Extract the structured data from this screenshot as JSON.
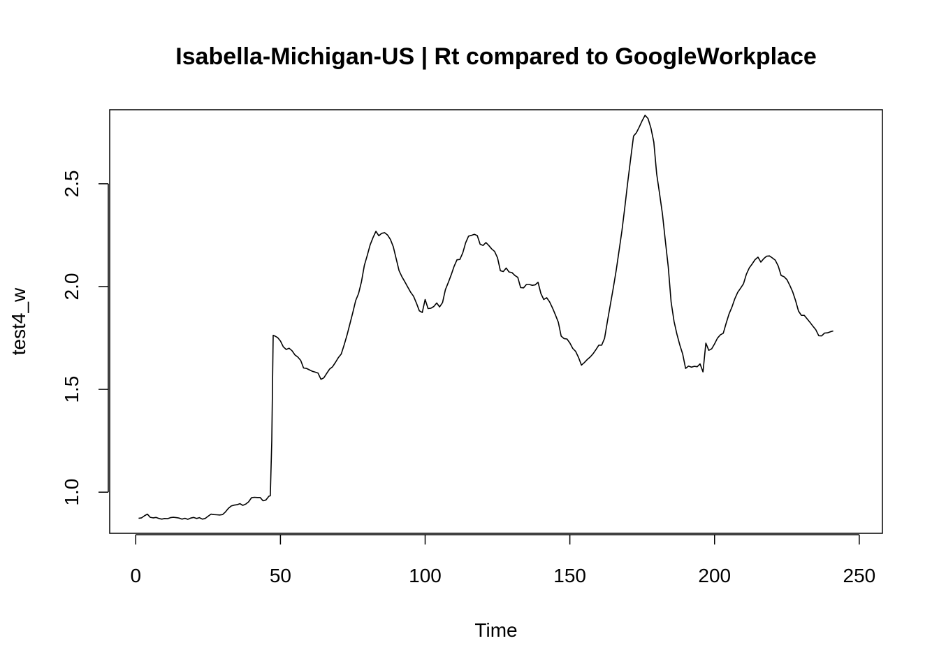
{
  "chart_data": {
    "type": "line",
    "title": "Isabella-Michigan-US | Rt compared to GoogleWorkplace",
    "xlabel": "Time",
    "ylabel": "test4_w",
    "xlim": [
      -9,
      258
    ],
    "ylim": [
      0.8,
      2.86
    ],
    "x_ticks": [
      0,
      50,
      100,
      150,
      200,
      250
    ],
    "y_ticks": [
      1.0,
      1.5,
      2.0,
      2.5
    ],
    "x_tick_labels": [
      "0",
      "50",
      "100",
      "150",
      "200",
      "250"
    ],
    "y_tick_labels": [
      "1.0",
      "1.5",
      "2.0",
      "2.5"
    ],
    "grid": false,
    "legend": "none",
    "line_color": "#000000",
    "series": [
      {
        "points": [
          [
            1,
            0.873
          ],
          [
            2,
            0.875
          ],
          [
            3,
            0.885
          ],
          [
            4,
            0.893
          ],
          [
            5,
            0.878
          ],
          [
            6,
            0.875
          ],
          [
            7,
            0.877
          ],
          [
            8,
            0.872
          ],
          [
            9,
            0.869
          ],
          [
            10,
            0.872
          ],
          [
            11,
            0.871
          ],
          [
            12,
            0.876
          ],
          [
            13,
            0.878
          ],
          [
            14,
            0.876
          ],
          [
            15,
            0.874
          ],
          [
            16,
            0.869
          ],
          [
            17,
            0.873
          ],
          [
            18,
            0.868
          ],
          [
            19,
            0.874
          ],
          [
            20,
            0.877
          ],
          [
            21,
            0.872
          ],
          [
            22,
            0.876
          ],
          [
            23,
            0.869
          ],
          [
            24,
            0.872
          ],
          [
            25,
            0.883
          ],
          [
            26,
            0.893
          ],
          [
            27,
            0.891
          ],
          [
            28,
            0.89
          ],
          [
            29,
            0.889
          ],
          [
            30,
            0.891
          ],
          [
            31,
            0.904
          ],
          [
            32,
            0.921
          ],
          [
            33,
            0.933
          ],
          [
            34,
            0.937
          ],
          [
            35,
            0.939
          ],
          [
            36,
            0.944
          ],
          [
            37,
            0.936
          ],
          [
            38,
            0.942
          ],
          [
            39,
            0.953
          ],
          [
            40,
            0.973
          ],
          [
            41,
            0.975
          ],
          [
            42,
            0.974
          ],
          [
            43,
            0.974
          ],
          [
            44,
            0.958
          ],
          [
            45,
            0.962
          ],
          [
            46,
            0.98
          ],
          [
            46.5,
            0.983
          ],
          [
            47,
            1.25
          ],
          [
            47.5,
            1.763
          ],
          [
            48,
            1.76
          ],
          [
            49,
            1.752
          ],
          [
            50,
            1.735
          ],
          [
            51,
            1.707
          ],
          [
            52,
            1.694
          ],
          [
            53,
            1.7
          ],
          [
            54,
            1.688
          ],
          [
            55,
            1.668
          ],
          [
            56,
            1.657
          ],
          [
            57,
            1.641
          ],
          [
            58,
            1.604
          ],
          [
            59,
            1.602
          ],
          [
            60,
            1.595
          ],
          [
            61,
            1.588
          ],
          [
            62,
            1.584
          ],
          [
            63,
            1.579
          ],
          [
            64,
            1.549
          ],
          [
            65,
            1.556
          ],
          [
            66,
            1.578
          ],
          [
            67,
            1.599
          ],
          [
            68,
            1.61
          ],
          [
            69,
            1.631
          ],
          [
            70,
            1.654
          ],
          [
            71,
            1.672
          ],
          [
            72,
            1.715
          ],
          [
            73,
            1.764
          ],
          [
            74,
            1.818
          ],
          [
            75,
            1.874
          ],
          [
            76,
            1.932
          ],
          [
            77,
            1.966
          ],
          [
            78,
            2.024
          ],
          [
            79,
            2.103
          ],
          [
            80,
            2.152
          ],
          [
            81,
            2.203
          ],
          [
            82,
            2.239
          ],
          [
            83,
            2.269
          ],
          [
            84,
            2.247
          ],
          [
            85,
            2.259
          ],
          [
            86,
            2.262
          ],
          [
            87,
            2.251
          ],
          [
            88,
            2.229
          ],
          [
            89,
            2.194
          ],
          [
            90,
            2.135
          ],
          [
            91,
            2.077
          ],
          [
            92,
            2.047
          ],
          [
            93,
            2.023
          ],
          [
            94,
            1.997
          ],
          [
            95,
            1.972
          ],
          [
            96,
            1.953
          ],
          [
            97,
            1.919
          ],
          [
            98,
            1.882
          ],
          [
            99,
            1.874
          ],
          [
            100,
            1.937
          ],
          [
            101,
            1.893
          ],
          [
            102,
            1.895
          ],
          [
            103,
            1.903
          ],
          [
            104,
            1.92
          ],
          [
            105,
            1.901
          ],
          [
            106,
            1.922
          ],
          [
            107,
            1.985
          ],
          [
            108,
            2.02
          ],
          [
            109,
            2.057
          ],
          [
            110,
            2.098
          ],
          [
            111,
            2.13
          ],
          [
            112,
            2.132
          ],
          [
            113,
            2.164
          ],
          [
            114,
            2.213
          ],
          [
            115,
            2.245
          ],
          [
            116,
            2.249
          ],
          [
            117,
            2.254
          ],
          [
            118,
            2.248
          ],
          [
            119,
            2.206
          ],
          [
            120,
            2.2
          ],
          [
            121,
            2.214
          ],
          [
            122,
            2.2
          ],
          [
            123,
            2.183
          ],
          [
            124,
            2.171
          ],
          [
            125,
            2.14
          ],
          [
            126,
            2.077
          ],
          [
            127,
            2.073
          ],
          [
            128,
            2.09
          ],
          [
            129,
            2.071
          ],
          [
            130,
            2.068
          ],
          [
            131,
            2.054
          ],
          [
            132,
            2.045
          ],
          [
            133,
            1.995
          ],
          [
            134,
            1.994
          ],
          [
            135,
            2.01
          ],
          [
            136,
            2.01
          ],
          [
            137,
            2.006
          ],
          [
            138,
            2.008
          ],
          [
            139,
            2.021
          ],
          [
            140,
            1.966
          ],
          [
            141,
            1.937
          ],
          [
            142,
            1.946
          ],
          [
            143,
            1.926
          ],
          [
            144,
            1.896
          ],
          [
            145,
            1.863
          ],
          [
            146,
            1.827
          ],
          [
            147,
            1.759
          ],
          [
            148,
            1.747
          ],
          [
            149,
            1.745
          ],
          [
            150,
            1.726
          ],
          [
            151,
            1.699
          ],
          [
            152,
            1.685
          ],
          [
            153,
            1.655
          ],
          [
            154,
            1.618
          ],
          [
            155,
            1.63
          ],
          [
            156,
            1.645
          ],
          [
            157,
            1.657
          ],
          [
            158,
            1.673
          ],
          [
            159,
            1.693
          ],
          [
            160,
            1.715
          ],
          [
            161,
            1.715
          ],
          [
            162,
            1.748
          ],
          [
            163,
            1.833
          ],
          [
            164,
            1.912
          ],
          [
            165,
            1.993
          ],
          [
            166,
            2.077
          ],
          [
            167,
            2.173
          ],
          [
            168,
            2.272
          ],
          [
            169,
            2.385
          ],
          [
            170,
            2.508
          ],
          [
            171,
            2.62
          ],
          [
            172,
            2.732
          ],
          [
            173,
            2.748
          ],
          [
            174,
            2.776
          ],
          [
            175,
            2.807
          ],
          [
            176,
            2.833
          ],
          [
            177,
            2.817
          ],
          [
            178,
            2.772
          ],
          [
            179,
            2.703
          ],
          [
            180,
            2.548
          ],
          [
            181,
            2.453
          ],
          [
            182,
            2.352
          ],
          [
            183,
            2.223
          ],
          [
            184,
            2.095
          ],
          [
            185,
            1.924
          ],
          [
            186,
            1.83
          ],
          [
            187,
            1.768
          ],
          [
            188,
            1.716
          ],
          [
            189,
            1.671
          ],
          [
            190,
            1.602
          ],
          [
            191,
            1.613
          ],
          [
            192,
            1.608
          ],
          [
            193,
            1.612
          ],
          [
            194,
            1.61
          ],
          [
            195,
            1.624
          ],
          [
            196,
            1.585
          ],
          [
            197,
            1.725
          ],
          [
            198,
            1.69
          ],
          [
            199,
            1.697
          ],
          [
            200,
            1.721
          ],
          [
            201,
            1.749
          ],
          [
            202,
            1.765
          ],
          [
            203,
            1.773
          ],
          [
            204,
            1.821
          ],
          [
            205,
            1.867
          ],
          [
            206,
            1.9
          ],
          [
            207,
            1.94
          ],
          [
            208,
            1.972
          ],
          [
            209,
            1.992
          ],
          [
            210,
            2.014
          ],
          [
            211,
            2.06
          ],
          [
            212,
            2.091
          ],
          [
            213,
            2.11
          ],
          [
            214,
            2.131
          ],
          [
            215,
            2.143
          ],
          [
            216,
            2.119
          ],
          [
            217,
            2.136
          ],
          [
            218,
            2.148
          ],
          [
            219,
            2.149
          ],
          [
            220,
            2.139
          ],
          [
            221,
            2.128
          ],
          [
            222,
            2.1
          ],
          [
            223,
            2.054
          ],
          [
            224,
            2.048
          ],
          [
            225,
            2.034
          ],
          [
            226,
            2.006
          ],
          [
            227,
            1.974
          ],
          [
            228,
            1.932
          ],
          [
            229,
            1.881
          ],
          [
            230,
            1.86
          ],
          [
            231,
            1.86
          ],
          [
            232,
            1.843
          ],
          [
            233,
            1.826
          ],
          [
            234,
            1.807
          ],
          [
            235,
            1.79
          ],
          [
            236,
            1.761
          ],
          [
            237,
            1.76
          ],
          [
            238,
            1.774
          ],
          [
            239,
            1.775
          ],
          [
            240,
            1.78
          ],
          [
            241,
            1.784
          ]
        ]
      }
    ]
  }
}
